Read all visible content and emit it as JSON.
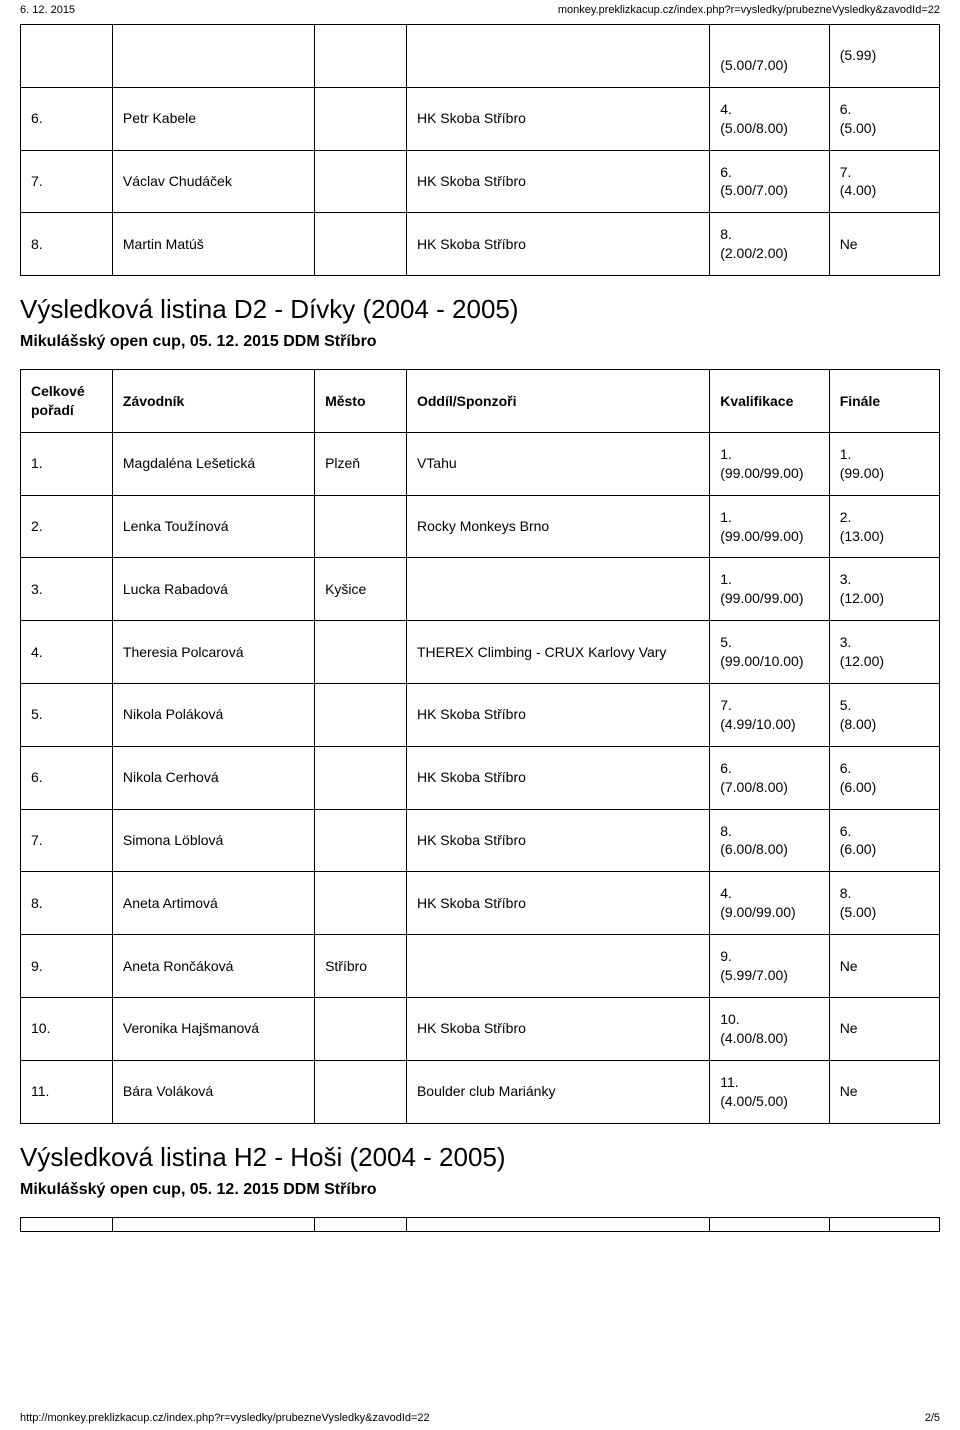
{
  "header": {
    "date": "6. 12. 2015",
    "url_top": "monkey.preklizkacup.cz/index.php?r=vysledky/prubezneVysledky&zavodId=22"
  },
  "footer": {
    "url": "http://monkey.preklizkacup.cz/index.php?r=vysledky/prubezneVysledky&zavodId=22",
    "page": "2/5"
  },
  "table1": {
    "rows": [
      {
        "rank": "",
        "name": "",
        "city": "",
        "club": "",
        "qual": "\n(5.00/7.00)",
        "final": "(5.99)"
      },
      {
        "rank": "6.",
        "name": "Petr Kabele",
        "city": "",
        "club": "HK Skoba Stříbro",
        "qual": "4.\n(5.00/8.00)",
        "final": "6.\n(5.00)"
      },
      {
        "rank": "7.",
        "name": "Václav Chudáček",
        "city": "",
        "club": "HK Skoba Stříbro",
        "qual": "6.\n(5.00/7.00)",
        "final": "7.\n(4.00)"
      },
      {
        "rank": "8.",
        "name": "Martin Matúš",
        "city": "",
        "club": "HK Skoba Stříbro",
        "qual": "8.\n(2.00/2.00)",
        "final": "Ne"
      }
    ]
  },
  "section_d2": {
    "title": "Výsledková listina D2 - Dívky (2004 - 2005)",
    "subtitle": "Mikulášský open cup, 05. 12. 2015 DDM Stříbro"
  },
  "table2": {
    "headers": {
      "rank": "Celkové\npořadí",
      "name": "Závodník",
      "city": "Město",
      "club": "Oddíl/Sponzoři",
      "qual": "Kvalifikace",
      "final": "Finále"
    },
    "rows": [
      {
        "rank": "1.",
        "name": "Magdaléna Lešetická",
        "city": "Plzeň",
        "club": "VTahu",
        "qual": "1.\n(99.00/99.00)",
        "final": "1.\n(99.00)"
      },
      {
        "rank": "2.",
        "name": "Lenka Toužínová",
        "city": "",
        "club": "Rocky Monkeys Brno",
        "qual": "1.\n(99.00/99.00)",
        "final": "2.\n(13.00)"
      },
      {
        "rank": "3.",
        "name": "Lucka Rabadová",
        "city": "Kyšice",
        "club": "",
        "qual": "1.\n(99.00/99.00)",
        "final": "3.\n(12.00)"
      },
      {
        "rank": "4.",
        "name": "Theresia Polcarová",
        "city": "",
        "club": "THEREX Climbing - CRUX Karlovy Vary",
        "qual": "5.\n(99.00/10.00)",
        "final": "3.\n(12.00)"
      },
      {
        "rank": "5.",
        "name": "Nikola Poláková",
        "city": "",
        "club": "HK Skoba Stříbro",
        "qual": "7.\n(4.99/10.00)",
        "final": "5.\n(8.00)"
      },
      {
        "rank": "6.",
        "name": "Nikola Cerhová",
        "city": "",
        "club": "HK Skoba Stříbro",
        "qual": "6.\n(7.00/8.00)",
        "final": "6.\n(6.00)"
      },
      {
        "rank": "7.",
        "name": "Simona Löblová",
        "city": "",
        "club": "HK Skoba Stříbro",
        "qual": "8.\n(6.00/8.00)",
        "final": "6.\n(6.00)"
      },
      {
        "rank": "8.",
        "name": "Aneta Artimová",
        "city": "",
        "club": "HK Skoba Stříbro",
        "qual": "4.\n(9.00/99.00)",
        "final": "8.\n(5.00)"
      },
      {
        "rank": "9.",
        "name": "Aneta Rončáková",
        "city": "Stříbro",
        "club": "",
        "qual": "9.\n(5.99/7.00)",
        "final": "Ne"
      },
      {
        "rank": "10.",
        "name": "Veronika Hajšmanová",
        "city": "",
        "club": "HK Skoba Stříbro",
        "qual": "10.\n(4.00/8.00)",
        "final": "Ne"
      },
      {
        "rank": "11.",
        "name": "Bára Voláková",
        "city": "",
        "club": "Boulder club Mariánky",
        "qual": "11.\n(4.00/5.00)",
        "final": "Ne"
      }
    ]
  },
  "section_h2": {
    "title": "Výsledková listina H2 - Hoši (2004 - 2005)",
    "subtitle": "Mikulášský open cup, 05. 12. 2015 DDM Stříbro"
  }
}
